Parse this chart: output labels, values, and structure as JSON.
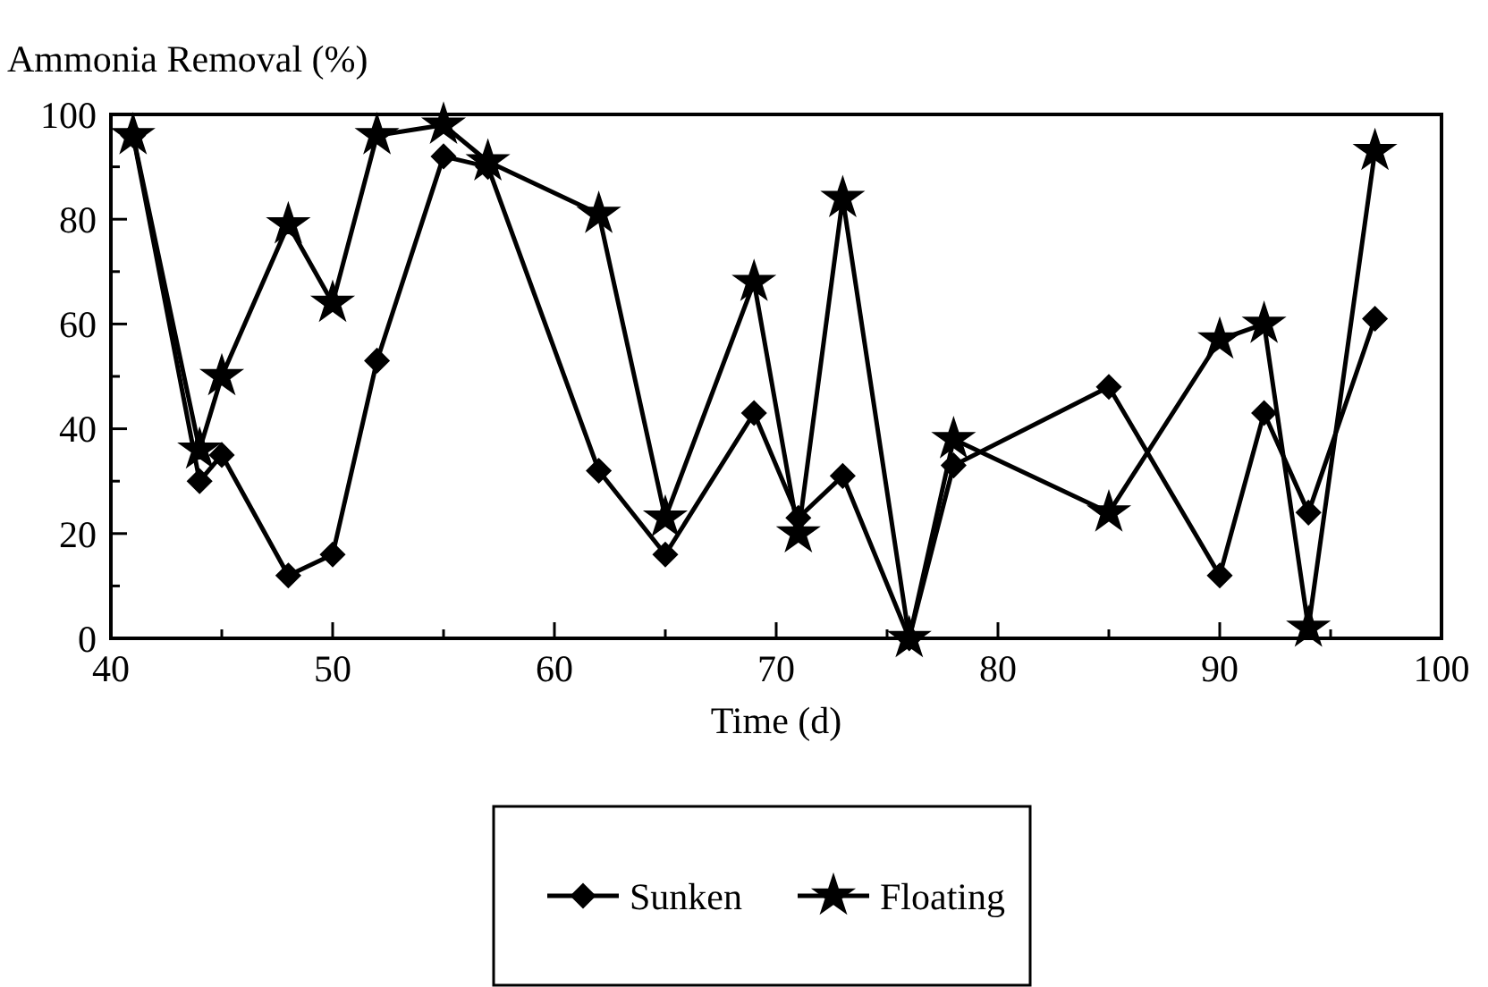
{
  "chart_data": {
    "type": "line",
    "ylabel": "Ammonia Removal (%)",
    "xlabel": "Time (d)",
    "x": [
      41,
      44,
      45,
      48,
      50,
      52,
      55,
      57,
      62,
      65,
      69,
      71,
      73,
      76,
      78,
      85,
      90,
      92,
      94,
      97
    ],
    "series": [
      {
        "name": "Sunken",
        "color": "#000000",
        "marker": "diamond",
        "values": [
          96,
          30,
          35,
          12,
          16,
          53,
          92,
          90,
          32,
          16,
          43,
          23,
          31,
          0,
          33,
          48,
          12,
          43,
          24,
          61
        ]
      },
      {
        "name": "Floating",
        "color": "#000000",
        "marker": "star",
        "values": [
          96,
          36,
          50,
          79,
          64,
          96,
          98,
          91,
          81,
          23,
          68,
          20,
          84,
          0,
          38,
          24,
          57,
          60,
          2,
          93
        ]
      }
    ],
    "xlim": [
      40,
      100
    ],
    "xticks": [
      40,
      {
        "value": 45,
        "label": null
      },
      50,
      {
        "value": 55,
        "label": null
      },
      60,
      {
        "value": 65,
        "label": null
      },
      70,
      {
        "value": 75,
        "label": null
      },
      80,
      {
        "value": 85,
        "label": null
      },
      90,
      {
        "value": 95,
        "label": null
      },
      100
    ],
    "ylim": [
      0,
      100
    ],
    "yticks": [
      0,
      {
        "value": 10,
        "label": null
      },
      20,
      {
        "value": 30,
        "label": null
      },
      40,
      {
        "value": 50,
        "label": null
      },
      60,
      {
        "value": 70,
        "label": null
      },
      80,
      {
        "value": 90,
        "label": null
      },
      100
    ],
    "grid": false,
    "legend": "bottom",
    "line_style": "solid"
  }
}
